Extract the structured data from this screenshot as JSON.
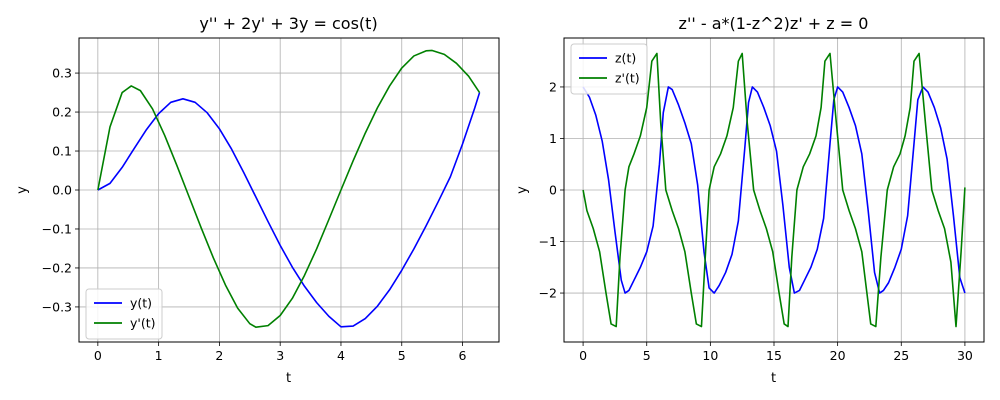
{
  "chart_data": [
    {
      "type": "line",
      "title": "y'' + 2y' + 3y = cos(t)",
      "xlabel": "t",
      "ylabel": "y",
      "xlim": [
        -0.31,
        6.6
      ],
      "ylim": [
        -0.39,
        0.39
      ],
      "xticks": [
        0,
        1,
        2,
        3,
        4,
        5,
        6
      ],
      "yticks": [
        -0.3,
        -0.2,
        -0.1,
        0.0,
        0.1,
        0.2,
        0.3
      ],
      "ytick_labels": [
        "−0.3",
        "−0.2",
        "−0.1",
        "0.0",
        "0.1",
        "0.2",
        "0.3"
      ],
      "grid": true,
      "legend": "lower-left",
      "series": [
        {
          "name": "y(t)",
          "color": "#0000ff",
          "x": [
            0,
            0.2,
            0.4,
            0.6,
            0.8,
            1.0,
            1.2,
            1.4,
            1.6,
            1.8,
            2.0,
            2.2,
            2.4,
            2.6,
            2.8,
            3.0,
            3.2,
            3.4,
            3.6,
            3.8,
            4.0,
            4.2,
            4.4,
            4.6,
            4.8,
            5.0,
            5.2,
            5.4,
            5.6,
            5.8,
            6.0,
            6.2,
            6.28
          ],
          "y": [
            0,
            0.017,
            0.058,
            0.107,
            0.155,
            0.196,
            0.225,
            0.234,
            0.225,
            0.198,
            0.157,
            0.105,
            0.045,
            -0.018,
            -0.081,
            -0.142,
            -0.198,
            -0.247,
            -0.289,
            -0.324,
            -0.351,
            -0.349,
            -0.33,
            -0.298,
            -0.256,
            -0.206,
            -0.151,
            -0.092,
            -0.03,
            0.034,
            0.118,
            0.21,
            0.25
          ]
        },
        {
          "name": "y'(t)",
          "color": "#008000",
          "x": [
            0,
            0.2,
            0.4,
            0.55,
            0.7,
            0.9,
            1.1,
            1.3,
            1.5,
            1.7,
            1.9,
            2.1,
            2.3,
            2.5,
            2.6,
            2.8,
            3.0,
            3.2,
            3.4,
            3.6,
            3.8,
            4.0,
            4.2,
            4.4,
            4.6,
            4.8,
            5.0,
            5.2,
            5.4,
            5.5,
            5.7,
            5.9,
            6.1,
            6.28
          ],
          "y": [
            0,
            0.162,
            0.25,
            0.267,
            0.255,
            0.208,
            0.14,
            0.063,
            -0.017,
            -0.097,
            -0.174,
            -0.244,
            -0.303,
            -0.343,
            -0.352,
            -0.348,
            -0.322,
            -0.278,
            -0.219,
            -0.151,
            -0.076,
            0.0,
            0.075,
            0.146,
            0.211,
            0.267,
            0.313,
            0.344,
            0.357,
            0.358,
            0.348,
            0.325,
            0.292,
            0.25
          ]
        }
      ]
    },
    {
      "type": "line",
      "title": "z'' - a*(1-z^2)z' + z = 0",
      "xlabel": "t",
      "ylabel": "y",
      "xlim": [
        -1.5,
        31.5
      ],
      "ylim": [
        -2.95,
        2.95
      ],
      "xticks": [
        0,
        5,
        10,
        15,
        20,
        25,
        30
      ],
      "yticks": [
        -2,
        -1,
        0,
        1,
        2
      ],
      "ytick_labels": [
        "−2",
        "−1",
        "0",
        "1",
        "2"
      ],
      "grid": true,
      "legend": "upper-left",
      "series": [
        {
          "name": "z(t)",
          "color": "#0000ff",
          "x": [
            0,
            0.5,
            1.0,
            1.5,
            2.0,
            2.5,
            3.0,
            3.3,
            3.6,
            4.0,
            4.5,
            5.0,
            5.5,
            6.0,
            6.3,
            6.7,
            7.0,
            7.5,
            8.0,
            8.5,
            9.0,
            9.5,
            9.9,
            10.3,
            10.7,
            11.2,
            11.7,
            12.2,
            12.7,
            13.0,
            13.3,
            13.7,
            14.2,
            14.7,
            15.2,
            15.7,
            16.2,
            16.6,
            17.0,
            17.4,
            17.9,
            18.4,
            18.9,
            19.4,
            19.7,
            20.0,
            20.4,
            20.9,
            21.4,
            21.9,
            22.4,
            22.9,
            23.3,
            23.6,
            24.0,
            24.5,
            25.0,
            25.5,
            26.0,
            26.3,
            26.7,
            27.1,
            27.6,
            28.1,
            28.6,
            29.1,
            29.6,
            30.0
          ],
          "y": [
            2.0,
            1.8,
            1.45,
            0.95,
            0.2,
            -0.8,
            -1.75,
            -2.0,
            -1.95,
            -1.75,
            -1.5,
            -1.2,
            -0.7,
            0.5,
            1.5,
            2.0,
            1.95,
            1.65,
            1.3,
            0.9,
            0.1,
            -1.2,
            -1.9,
            -2.0,
            -1.85,
            -1.6,
            -1.25,
            -0.6,
            0.8,
            1.7,
            2.0,
            1.9,
            1.6,
            1.25,
            0.75,
            -0.3,
            -1.5,
            -2.0,
            -1.95,
            -1.75,
            -1.5,
            -1.15,
            -0.55,
            0.9,
            1.75,
            2.0,
            1.9,
            1.6,
            1.25,
            0.7,
            -0.4,
            -1.6,
            -2.0,
            -1.95,
            -1.8,
            -1.5,
            -1.15,
            -0.5,
            0.9,
            1.75,
            2.0,
            1.9,
            1.6,
            1.2,
            0.6,
            -0.5,
            -1.7,
            -2.0
          ]
        },
        {
          "name": "z'(t)",
          "color": "#008000",
          "x": [
            0,
            0.3,
            0.8,
            1.3,
            1.8,
            2.2,
            2.6,
            2.9,
            3.3,
            3.6,
            4.0,
            4.5,
            5.0,
            5.4,
            5.8,
            6.1,
            6.5,
            7.0,
            7.5,
            8.0,
            8.5,
            8.9,
            9.3,
            9.6,
            9.9,
            10.3,
            10.8,
            11.3,
            11.8,
            12.2,
            12.5,
            12.9,
            13.4,
            13.9,
            14.4,
            14.9,
            15.4,
            15.8,
            16.1,
            16.4,
            16.8,
            17.3,
            17.8,
            18.3,
            18.7,
            19.0,
            19.4,
            19.9,
            20.4,
            20.9,
            21.4,
            21.9,
            22.3,
            22.6,
            23.0,
            23.4,
            23.9,
            24.4,
            24.9,
            25.3,
            25.7,
            26.0,
            26.4,
            26.9,
            27.4,
            27.9,
            28.4,
            28.9,
            29.3,
            29.7,
            30.0
          ],
          "y": [
            0,
            -0.4,
            -0.75,
            -1.2,
            -2.0,
            -2.6,
            -2.65,
            -1.3,
            0.0,
            0.45,
            0.7,
            1.05,
            1.6,
            2.5,
            2.65,
            1.3,
            0.0,
            -0.4,
            -0.75,
            -1.2,
            -2.0,
            -2.6,
            -2.65,
            -1.3,
            0.0,
            0.45,
            0.7,
            1.05,
            1.6,
            2.5,
            2.65,
            1.3,
            0.0,
            -0.4,
            -0.75,
            -1.2,
            -2.0,
            -2.6,
            -2.65,
            -1.3,
            0.0,
            0.45,
            0.7,
            1.05,
            1.6,
            2.5,
            2.65,
            1.3,
            0.0,
            -0.4,
            -0.75,
            -1.2,
            -2.0,
            -2.6,
            -2.65,
            -1.3,
            0.0,
            0.45,
            0.7,
            1.05,
            1.6,
            2.5,
            2.65,
            1.3,
            0.0,
            -0.4,
            -0.75,
            -1.4,
            -2.65,
            -1.2,
            0.05
          ]
        }
      ]
    }
  ]
}
